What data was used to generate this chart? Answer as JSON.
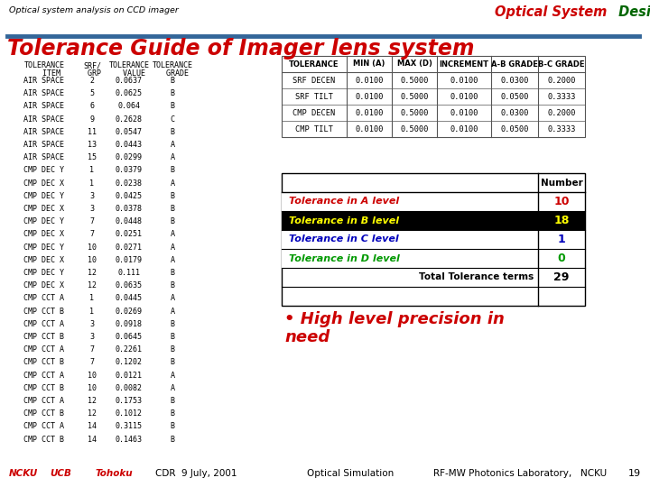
{
  "bg_color": "#ffffff",
  "header_text": "Optical system analysis on CCD imager",
  "header_color": "#000000",
  "brand_optical": "Optical System",
  "brand_design": " Design",
  "brand_optical_color": "#cc0000",
  "brand_design_color": "#006600",
  "title": "Tolerance Guide of Imager lens system",
  "title_color": "#cc0000",
  "footer_items": [
    "NCKU",
    "UCB",
    "Tohoku",
    "CDR  9 July, 2001",
    "Optical Simulation",
    "RF-MW Photonics Laboratory,   NCKU",
    "19"
  ],
  "footer_color": "#cc0000",
  "left_table_data": [
    [
      "AIR SPACE",
      "2",
      "0.0637",
      "B"
    ],
    [
      "AIR SPACE",
      "5",
      "0.0625",
      "B"
    ],
    [
      "AIR SPACE",
      "6",
      "0.064",
      "B"
    ],
    [
      "AIR SPACE",
      "9",
      "0.2628",
      "C"
    ],
    [
      "AIR SPACE",
      "11",
      "0.0547",
      "B"
    ],
    [
      "AIR SPACE",
      "13",
      "0.0443",
      "A"
    ],
    [
      "AIR SPACE",
      "15",
      "0.0299",
      "A"
    ],
    [
      "CMP DEC Y",
      "1",
      "0.0379",
      "B"
    ],
    [
      "CMP DEC X",
      "1",
      "0.0238",
      "A"
    ],
    [
      "CMP DEC Y",
      "3",
      "0.0425",
      "B"
    ],
    [
      "CMP DEC X",
      "3",
      "0.0378",
      "B"
    ],
    [
      "CMP DEC Y",
      "7",
      "0.0448",
      "B"
    ],
    [
      "CMP DEC X",
      "7",
      "0.0251",
      "A"
    ],
    [
      "CMP DEC Y",
      "10",
      "0.0271",
      "A"
    ],
    [
      "CMP DEC X",
      "10",
      "0.0179",
      "A"
    ],
    [
      "CMP DEC Y",
      "12",
      "0.111",
      "B"
    ],
    [
      "CMP DEC X",
      "12",
      "0.0635",
      "B"
    ],
    [
      "CMP CCT A",
      "1",
      "0.0445",
      "A"
    ],
    [
      "CMP CCT B",
      "1",
      "0.0269",
      "A"
    ],
    [
      "CMP CCT A",
      "3",
      "0.0918",
      "B"
    ],
    [
      "CMP CCT B",
      "3",
      "0.0645",
      "B"
    ],
    [
      "CMP CCT A",
      "7",
      "0.2261",
      "B"
    ],
    [
      "CMP CCT B",
      "7",
      "0.1202",
      "B"
    ],
    [
      "CMP CCT A",
      "10",
      "0.0121",
      "A"
    ],
    [
      "CMP CCT B",
      "10",
      "0.0082",
      "A"
    ],
    [
      "CMP CCT A",
      "12",
      "0.1753",
      "B"
    ],
    [
      "CMP CCT B",
      "12",
      "0.1012",
      "B"
    ],
    [
      "CMP CCT A",
      "14",
      "0.3115",
      "B"
    ],
    [
      "CMP CCT B",
      "14",
      "0.1463",
      "B"
    ]
  ],
  "right_table1_headers": [
    "TOLERANCE",
    "MIN (A)",
    "MAX (D)",
    "INCREMENT",
    "A-B GRADE",
    "B-C GRADE"
  ],
  "right_table1_data": [
    [
      "SRF DECEN",
      "0.0100",
      "0.5000",
      "0.0100",
      "0.0300",
      "0.2000"
    ],
    [
      "SRF TILT",
      "0.0100",
      "0.5000",
      "0.0100",
      "0.0500",
      "0.3333"
    ],
    [
      "CMP DECEN",
      "0.0100",
      "0.5000",
      "0.0100",
      "0.0300",
      "0.2000"
    ],
    [
      "CMP TILT",
      "0.0100",
      "0.5000",
      "0.0100",
      "0.0500",
      "0.3333"
    ]
  ],
  "level_rows": [
    {
      "label": "Tolerance in A level",
      "color": "#cc0000",
      "bg": "#ffffff",
      "value": "10",
      "value_color": "#cc0000"
    },
    {
      "label": "Tolerance in B level",
      "color": "#ffff00",
      "bg": "#000000",
      "value": "18",
      "value_color": "#ffff00"
    },
    {
      "label": "Tolerance in C level",
      "color": "#0000bb",
      "bg": "#ffffff",
      "value": "1",
      "value_color": "#0000bb"
    },
    {
      "label": "Tolerance in D level",
      "color": "#009900",
      "bg": "#ffffff",
      "value": "0",
      "value_color": "#009900"
    }
  ],
  "total_row": {
    "label": "Total Tolerance terms",
    "value": "29"
  },
  "bullet_line1": "• High level precision in",
  "bullet_line2": "need",
  "bullet_color": "#cc0000",
  "divider_color": "#336699"
}
